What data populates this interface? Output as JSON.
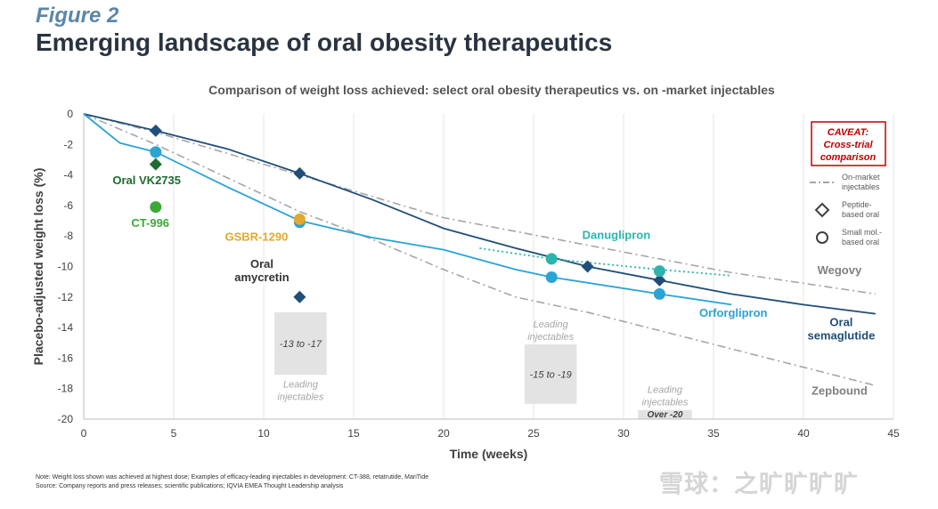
{
  "figure_label": "Figure 2",
  "figure_title": "Emerging landscape of oral obesity therapeutics",
  "notes": {
    "line1": "Note: Weight loss shown was achieved at highest dose; Examples of efficacy-leading injectables in development: CT-388, retatrutide, MariTide",
    "line2": "Source: Company reports and press releases; scientific publications; IQVIA EMEA Thought Leadership analysis"
  },
  "watermark": "雪球：之旷旷旷旷",
  "colors": {
    "dark_blue": "#1f4e79",
    "mid_blue": "#2aa3d5",
    "teal": "#2bb5ad",
    "gray_dash": "#a6a6a6",
    "green_dark": "#1e6b30",
    "green_light": "#3aaa35",
    "gold": "#e3a92c",
    "caveat_red": "#c00000",
    "box_fill": "#e3e3e3"
  },
  "chart_data": {
    "type": "line",
    "title": "Comparison of weight loss achieved: select oral obesity therapeutics vs. on -market injectables",
    "xlabel": "Time (weeks)",
    "ylabel": "Placebo-adjusted weight loss (%)",
    "xlim": [
      0,
      45
    ],
    "ylim": [
      -20,
      0
    ],
    "x_ticks": [
      0,
      5,
      10,
      15,
      20,
      25,
      30,
      35,
      40,
      45
    ],
    "y_ticks": [
      0,
      -2,
      -4,
      -6,
      -8,
      -10,
      -12,
      -14,
      -16,
      -18,
      -20
    ],
    "grid": "vertical",
    "series": [
      {
        "name": "Wegovy",
        "style": "gray-dash-dot",
        "color": "#a6a6a6",
        "points": [
          [
            0,
            0
          ],
          [
            4,
            -1.2
          ],
          [
            8,
            -2.6
          ],
          [
            12,
            -4.0
          ],
          [
            16,
            -5.4
          ],
          [
            20,
            -6.8
          ],
          [
            28,
            -8.6
          ],
          [
            36,
            -10.4
          ],
          [
            44,
            -11.8
          ]
        ]
      },
      {
        "name": "Zepbound",
        "style": "gray-dash-dot",
        "color": "#a6a6a6",
        "points": [
          [
            0,
            0
          ],
          [
            4,
            -2.0
          ],
          [
            8,
            -4.2
          ],
          [
            12,
            -6.4
          ],
          [
            16,
            -8.2
          ],
          [
            20,
            -10.2
          ],
          [
            24,
            -12.0
          ],
          [
            28,
            -13.0
          ],
          [
            32,
            -14.2
          ],
          [
            36,
            -15.4
          ],
          [
            40,
            -16.6
          ],
          [
            44,
            -17.8
          ]
        ]
      },
      {
        "name": "Oral semaglutide",
        "style": "solid",
        "color": "#1f4e79",
        "points": [
          [
            0,
            0
          ],
          [
            4,
            -1.1
          ],
          [
            8,
            -2.3
          ],
          [
            12,
            -3.9
          ],
          [
            16,
            -5.6
          ],
          [
            20,
            -7.5
          ],
          [
            24,
            -8.8
          ],
          [
            28,
            -10.0
          ],
          [
            32,
            -10.9
          ],
          [
            36,
            -11.8
          ],
          [
            40,
            -12.5
          ],
          [
            44,
            -13.1
          ]
        ]
      },
      {
        "name": "Orforglipron",
        "style": "solid",
        "color": "#2aa3d5",
        "points": [
          [
            0,
            0
          ],
          [
            2,
            -1.9
          ],
          [
            4,
            -2.5
          ],
          [
            8,
            -4.8
          ],
          [
            12,
            -7.0
          ],
          [
            16,
            -8.1
          ],
          [
            20,
            -8.9
          ],
          [
            24,
            -10.2
          ],
          [
            26,
            -10.7
          ],
          [
            32,
            -11.8
          ],
          [
            36,
            -12.5
          ]
        ]
      },
      {
        "name": "Danuglipron",
        "style": "dotted",
        "color": "#2bb5ad",
        "points": [
          [
            22,
            -8.8
          ],
          [
            26,
            -9.5
          ],
          [
            32,
            -10.2
          ],
          [
            36,
            -10.6
          ]
        ]
      }
    ],
    "markers": [
      {
        "label": "Oral semaglutide",
        "shape": "diamond",
        "color": "#1f4e79",
        "points": [
          [
            4,
            -1.1
          ],
          [
            12,
            -3.9
          ],
          [
            32,
            -10.9
          ]
        ]
      },
      {
        "label": "Orforglipron",
        "shape": "circle",
        "color": "#2aa3d5",
        "points": [
          [
            4,
            -2.5
          ],
          [
            12,
            -7.1
          ],
          [
            26,
            -10.7
          ],
          [
            32,
            -11.8
          ]
        ]
      },
      {
        "label": "Danuglipron",
        "shape": "circle",
        "color": "#2bb5ad",
        "points": [
          [
            26,
            -9.5
          ],
          [
            32,
            -10.3
          ]
        ]
      },
      {
        "label": "Danuglipron",
        "shape": "diamond",
        "color": "#1f4e79",
        "points": [
          [
            28,
            -10.0
          ]
        ]
      },
      {
        "label": "Oral VK2735",
        "shape": "diamond",
        "color": "#1e6b30",
        "points": [
          [
            4,
            -3.3
          ]
        ]
      },
      {
        "label": "CT-996",
        "shape": "circle",
        "color": "#3aaa35",
        "points": [
          [
            4,
            -6.1
          ]
        ]
      },
      {
        "label": "GSBR-1290",
        "shape": "circle",
        "color": "#e3a92c",
        "points": [
          [
            12,
            -6.9
          ]
        ]
      },
      {
        "label": "Oral amycretin",
        "shape": "diamond",
        "color": "#1f4e79",
        "points": [
          [
            12,
            -12.0
          ]
        ]
      }
    ],
    "series_labels": [
      {
        "text": "Wegovy",
        "lines": [
          "Wegovy"
        ],
        "x": 42,
        "y": -10.5,
        "color": "#808080",
        "anchor": "middle"
      },
      {
        "text": "Zepbound",
        "lines": [
          "Zepbound"
        ],
        "x": 42,
        "y": -18.4,
        "color": "#808080",
        "anchor": "middle"
      },
      {
        "text": "Oral semaglutide",
        "lines": [
          "Oral",
          "semaglutide"
        ],
        "x": 42.1,
        "y": -13.9,
        "color": "#1f4e79",
        "anchor": "middle"
      },
      {
        "text": "Orforglipron",
        "lines": [
          "Orforglipron"
        ],
        "x": 36.1,
        "y": -13.3,
        "color": "#2aa3d5",
        "anchor": "middle"
      },
      {
        "text": "Danuglipron",
        "lines": [
          "Danuglipron"
        ],
        "x": 29.6,
        "y": -8.2,
        "color": "#2bb5ad",
        "anchor": "middle"
      },
      {
        "text": "Oral VK2735",
        "lines": [
          "Oral VK2735"
        ],
        "x": 3.5,
        "y": -4.6,
        "color": "#1e6b30",
        "anchor": "middle"
      },
      {
        "text": "CT-996",
        "lines": [
          "CT-996"
        ],
        "x": 3.7,
        "y": -7.4,
        "color": "#3aaa35",
        "anchor": "middle"
      },
      {
        "text": "GSBR-1290",
        "lines": [
          "GSBR-1290"
        ],
        "x": 9.6,
        "y": -8.3,
        "color": "#e3a92c",
        "anchor": "middle"
      },
      {
        "text": "Oral amycretin",
        "lines": [
          "Oral",
          "amycretin"
        ],
        "x": 9.9,
        "y": -10.1,
        "color": "#333333",
        "anchor": "middle"
      }
    ],
    "injectable_boxes": [
      {
        "range": "-13 to -17",
        "x0": 10.6,
        "x1": 13.5,
        "y0": -13.0,
        "y1": -17.1,
        "label_lines": [
          "Leading",
          "injectables"
        ],
        "label_pos": "below"
      },
      {
        "range": "-15 to -19",
        "x0": 24.5,
        "x1": 27.4,
        "y0": -15.1,
        "y1": -19.0,
        "label_lines": [
          "Leading",
          "injectables"
        ],
        "label_pos": "above"
      },
      {
        "range": "Over -20",
        "x0": 30.8,
        "x1": 33.8,
        "y0": -19.4,
        "y1": -20.0,
        "label_lines": [
          "Leading",
          "injectables"
        ],
        "label_pos": "above"
      }
    ],
    "legend": {
      "placement": "right",
      "items": [
        {
          "symbol": "dash-dot",
          "lines": [
            "On-market",
            "injectables"
          ]
        },
        {
          "symbol": "diamond",
          "lines": [
            "Peptide-",
            "based oral"
          ]
        },
        {
          "symbol": "circle",
          "lines": [
            "Small mol.-",
            "based oral"
          ]
        }
      ]
    },
    "caveat": [
      "CAVEAT:",
      "Cross-trial",
      "comparison"
    ]
  }
}
